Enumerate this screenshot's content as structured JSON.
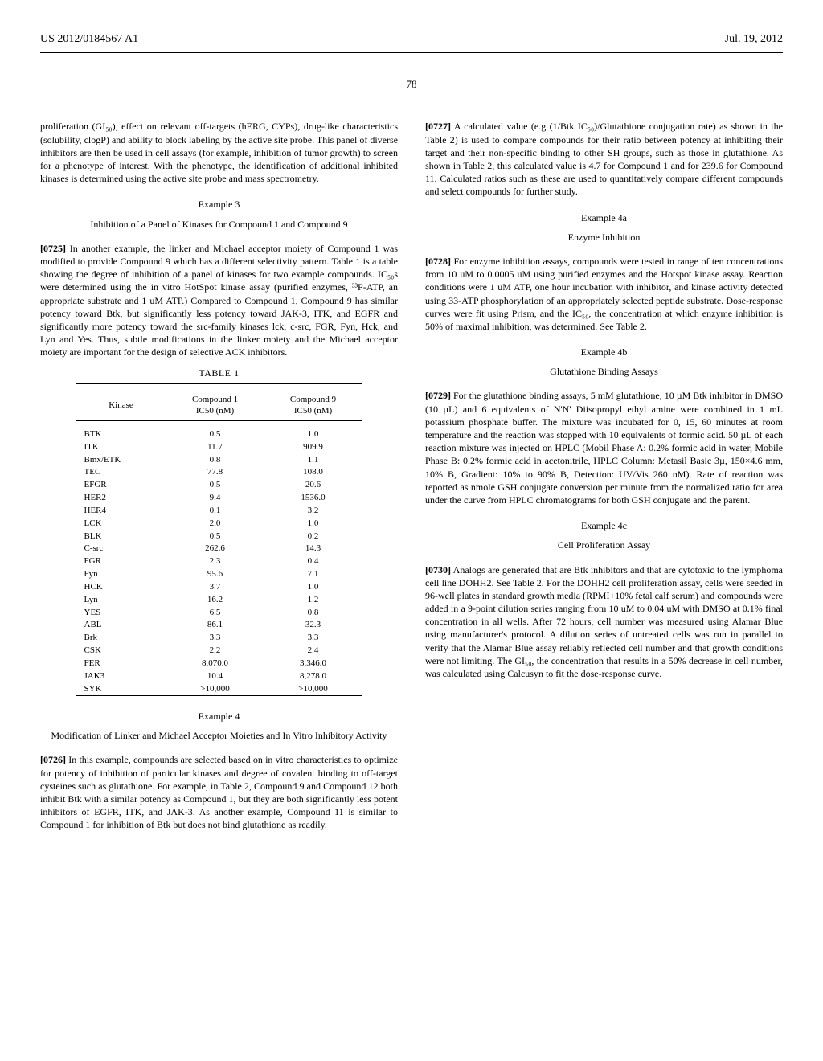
{
  "header": {
    "left": "US 2012/0184567 A1",
    "right": "Jul. 19, 2012"
  },
  "page_number": "78",
  "col_left": {
    "p1": "proliferation (GI₅₀), effect on relevant off-targets (hERG, CYPs), drug-like characteristics (solubility, clogP) and ability to block labeling by the active site probe. This panel of diverse inhibitors are then be used in cell assays (for example, inhibition of tumor growth) to screen for a phenotype of interest. With the phenotype, the identification of additional inhibited kinases is determined using the active site probe and mass spectrometry.",
    "ex3_title": "Example 3",
    "ex3_sub": "Inhibition of a Panel of Kinases for Compound 1 and Compound 9",
    "p0725_num": "[0725]",
    "p0725": "    In another example, the linker and Michael acceptor moiety of Compound 1 was modified to provide Compound 9 which has a different selectivity pattern. Table 1 is a table showing the degree of inhibition of a panel of kinases for two example compounds. IC₅₀s were determined using the in vitro HotSpot kinase assay (purified enzymes, ³³P-ATP, an appropriate substrate and 1 uM ATP.) Compared to Compound 1, Compound 9 has similar potency toward Btk, but significantly less potency toward JAK-3, ITK, and EGFR and significantly more potency toward the src-family kinases lck, c-src, FGR, Fyn, Hck, and Lyn and Yes. Thus, subtle modifications in the linker moiety and the Michael acceptor moiety are important for the design of selective ACK inhibitors.",
    "table_label": "TABLE 1",
    "table": {
      "columns": [
        "Kinase",
        "Compound 1 IC50 (nM)",
        "Compound 9 IC50 (nM)"
      ],
      "rows": [
        [
          "BTK",
          "0.5",
          "1.0"
        ],
        [
          "ITK",
          "11.7",
          "909.9"
        ],
        [
          "Bmx/ETK",
          "0.8",
          "1.1"
        ],
        [
          "TEC",
          "77.8",
          "108.0"
        ],
        [
          "EFGR",
          "0.5",
          "20.6"
        ],
        [
          "HER2",
          "9.4",
          "1536.0"
        ],
        [
          "HER4",
          "0.1",
          "3.2"
        ],
        [
          "LCK",
          "2.0",
          "1.0"
        ],
        [
          "BLK",
          "0.5",
          "0.2"
        ],
        [
          "C-src",
          "262.6",
          "14.3"
        ],
        [
          "FGR",
          "2.3",
          "0.4"
        ],
        [
          "Fyn",
          "95.6",
          "7.1"
        ],
        [
          "HCK",
          "3.7",
          "1.0"
        ],
        [
          "Lyn",
          "16.2",
          "1.2"
        ],
        [
          "YES",
          "6.5",
          "0.8"
        ],
        [
          "ABL",
          "86.1",
          "32.3"
        ],
        [
          "Brk",
          "3.3",
          "3.3"
        ],
        [
          "CSK",
          "2.2",
          "2.4"
        ],
        [
          "FER",
          "8,070.0",
          "3,346.0"
        ],
        [
          "JAK3",
          "10.4",
          "8,278.0"
        ],
        [
          "SYK",
          ">10,000",
          ">10,000"
        ]
      ]
    },
    "ex4_title": "Example 4",
    "ex4_sub": "Modification of Linker and Michael Acceptor Moieties and In Vitro Inhibitory Activity",
    "p0726_num": "[0726]",
    "p0726": "    In this example, compounds are selected based on in vitro characteristics to optimize for potency of inhibition of particular kinases and degree of covalent binding to off-target cysteines such as glutathione. For example, in Table 2, Compound 9 and Compound 12 both inhibit Btk with a similar potency as Compound 1, but they are both significantly less potent inhibitors of EGFR, ITK, and JAK-3. As another example, Compound 11 is similar to Compound 1 for inhibition of Btk but does not bind glutathione as readily."
  },
  "col_right": {
    "p0727_num": "[0727]",
    "p0727": "    A calculated value (e.g (1/Btk IC₅₀)/Glutathione conjugation rate) as shown in the Table 2) is used to compare compounds for their ratio between potency at inhibiting their target and their non-specific binding to other SH groups, such as those in glutathione. As shown in Table 2, this calculated value is 4.7 for Compound 1 and for 239.6 for Compound 11. Calculated ratios such as these are used to quantitatively compare different compounds and select compounds for further study.",
    "ex4a_title": "Example 4a",
    "ex4a_sub": "Enzyme Inhibition",
    "p0728_num": "[0728]",
    "p0728": "    For enzyme inhibition assays, compounds were tested in range of ten concentrations from 10 uM to 0.0005 uM using purified enzymes and the Hotspot kinase assay. Reaction conditions were 1 uM ATP, one hour incubation with inhibitor, and kinase activity detected using 33-ATP phosphorylation of an appropriately selected peptide substrate. Dose-response curves were fit using Prism, and the IC₅₀, the concentration at which enzyme inhibition is 50% of maximal inhibition, was determined. See Table 2.",
    "ex4b_title": "Example 4b",
    "ex4b_sub": "Glutathione Binding Assays",
    "p0729_num": "[0729]",
    "p0729": "    For the glutathione binding assays, 5 mM glutathione, 10 µM Btk inhibitor in DMSO (10 µL) and 6 equivalents of N'N' Diisopropyl ethyl amine were combined in 1 mL potassium phosphate buffer. The mixture was incubated for 0, 15, 60 minutes at room temperature and the reaction was stopped with 10 equivalents of formic acid. 50 µL of each reaction mixture was injected on HPLC (Mobil Phase A: 0.2% formic acid in water, Mobile Phase B: 0.2% formic acid in acetonitrile, HPLC Column: Metasil Basic 3µ, 150×4.6 mm, 10% B, Gradient: 10% to 90% B, Detection: UV/Vis 260 nM). Rate of reaction was reported as nmole GSH conjugate conversion per minute from the normalized ratio for area under the curve from HPLC chromatograms for both GSH conjugate and the parent.",
    "ex4c_title": "Example 4c",
    "ex4c_sub": "Cell Proliferation Assay",
    "p0730_num": "[0730]",
    "p0730": "    Analogs are generated that are Btk inhibitors and that are cytotoxic to the lymphoma cell line DOHH2. See Table 2. For the DOHH2 cell proliferation assay, cells were seeded in 96-well plates in standard growth media (RPMI+10% fetal calf serum) and compounds were added in a 9-point dilution series ranging from 10 uM to 0.04 uM with DMSO at 0.1% final concentration in all wells. After 72 hours, cell number was measured using Alamar Blue using manufacturer's protocol. A dilution series of untreated cells was run in parallel to verify that the Alamar Blue assay reliably reflected cell number and that growth conditions were not limiting. The GI₅₀, the concentration that results in a 50% decrease in cell number, was calculated using Calcusyn to fit the dose-response curve."
  }
}
